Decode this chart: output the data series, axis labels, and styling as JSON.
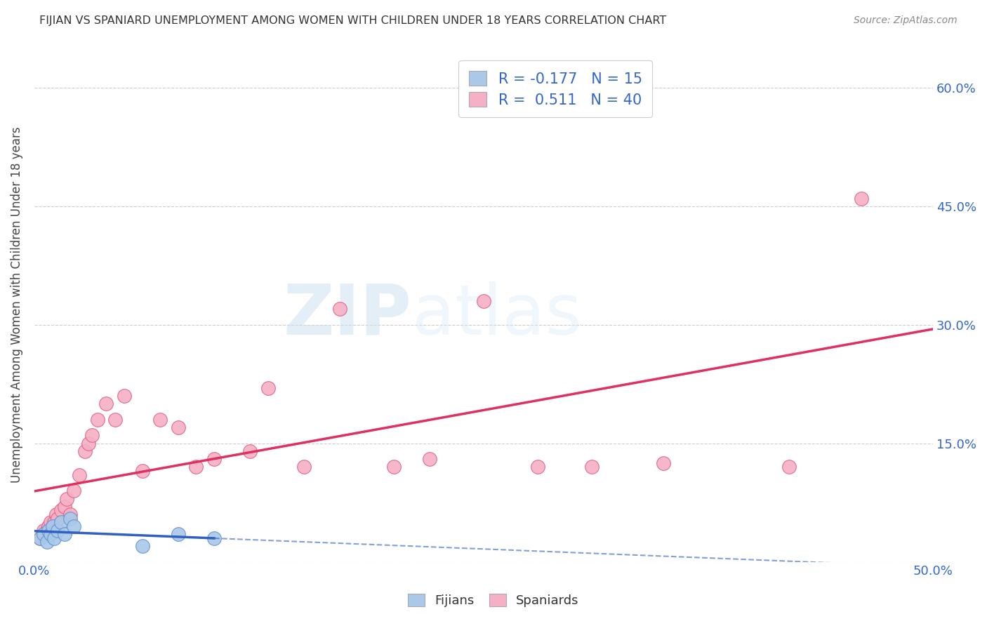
{
  "title": "FIJIAN VS SPANIARD UNEMPLOYMENT AMONG WOMEN WITH CHILDREN UNDER 18 YEARS CORRELATION CHART",
  "source": "Source: ZipAtlas.com",
  "ylabel": "Unemployment Among Women with Children Under 18 years",
  "xlim": [
    0.0,
    0.5
  ],
  "ylim": [
    0.0,
    0.65
  ],
  "xticks": [
    0.0,
    0.1,
    0.2,
    0.3,
    0.4,
    0.5
  ],
  "yticks": [
    0.0,
    0.15,
    0.3,
    0.45,
    0.6
  ],
  "right_ytick_labels": [
    "",
    "15.0%",
    "30.0%",
    "45.0%",
    "60.0%"
  ],
  "xtick_labels": [
    "0.0%",
    "",
    "",
    "",
    "",
    "50.0%"
  ],
  "fijian_color": "#aac8e8",
  "spaniard_color": "#f5b0c5",
  "fijian_edge_color": "#6090d0",
  "spaniard_edge_color": "#e06080",
  "fijian_line_color": "#3060c0",
  "spaniard_line_color": "#e03060",
  "legend_R_fijian": "-0.177",
  "legend_N_fijian": "15",
  "legend_R_spaniard": "0.511",
  "legend_N_spaniard": "40",
  "fijians_x": [
    0.003,
    0.005,
    0.007,
    0.008,
    0.009,
    0.01,
    0.011,
    0.013,
    0.015,
    0.017,
    0.02,
    0.022,
    0.06,
    0.08,
    0.1
  ],
  "fijians_y": [
    0.03,
    0.035,
    0.025,
    0.04,
    0.035,
    0.045,
    0.03,
    0.04,
    0.05,
    0.035,
    0.055,
    0.045,
    0.02,
    0.035,
    0.03
  ],
  "spaniards_x": [
    0.003,
    0.005,
    0.006,
    0.007,
    0.008,
    0.009,
    0.01,
    0.011,
    0.012,
    0.013,
    0.015,
    0.017,
    0.018,
    0.02,
    0.022,
    0.025,
    0.028,
    0.03,
    0.032,
    0.035,
    0.04,
    0.045,
    0.05,
    0.06,
    0.07,
    0.08,
    0.09,
    0.1,
    0.12,
    0.13,
    0.15,
    0.17,
    0.2,
    0.22,
    0.25,
    0.28,
    0.31,
    0.35,
    0.42,
    0.46
  ],
  "spaniards_y": [
    0.03,
    0.04,
    0.035,
    0.04,
    0.045,
    0.05,
    0.045,
    0.05,
    0.06,
    0.055,
    0.065,
    0.07,
    0.08,
    0.06,
    0.09,
    0.11,
    0.14,
    0.15,
    0.16,
    0.18,
    0.2,
    0.18,
    0.21,
    0.115,
    0.18,
    0.17,
    0.12,
    0.13,
    0.14,
    0.22,
    0.12,
    0.32,
    0.12,
    0.13,
    0.33,
    0.12,
    0.12,
    0.125,
    0.12,
    0.46
  ],
  "watermark_zip": "ZIP",
  "watermark_atlas": "atlas",
  "background_color": "#ffffff"
}
